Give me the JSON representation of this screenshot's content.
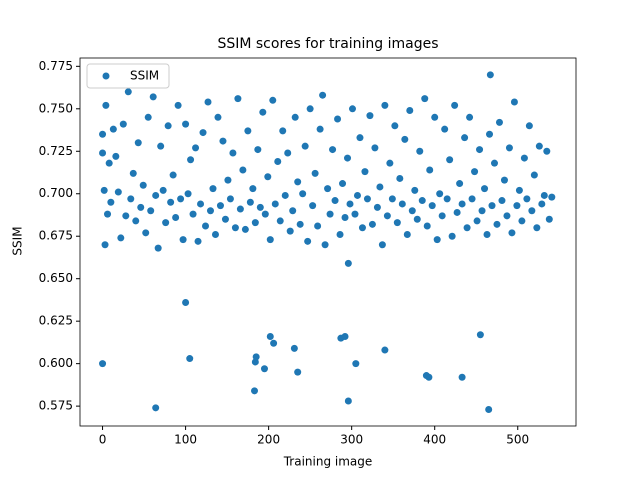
{
  "chart_data": {
    "type": "scatter",
    "title": "SSIM scores for training images",
    "x_label": "Training image",
    "y_label": "SSIM",
    "legend": "upper left",
    "xlim": [
      -27.15,
      570.15
    ],
    "ylim": [
      0.5633,
      0.7799
    ],
    "xticks": [
      0,
      100,
      200,
      300,
      400,
      500
    ],
    "yticks": [
      0.575,
      {
        "value": 0.6,
        "label": "0.600"
      },
      0.625,
      {
        "value": 0.65,
        "label": "0.650"
      },
      0.675,
      {
        "value": 0.7,
        "label": "0.700"
      },
      0.725,
      {
        "value": 0.75,
        "label": "0.750"
      },
      0.775
    ],
    "series": [
      {
        "name": "SSIM",
        "color": "#1f77b4",
        "x": [
          0,
          2,
          4,
          6,
          8,
          10,
          13,
          16,
          19,
          22,
          25,
          28,
          31,
          34,
          37,
          40,
          43,
          46,
          49,
          52,
          55,
          58,
          61,
          64,
          67,
          70,
          73,
          76,
          79,
          82,
          85,
          88,
          91,
          94,
          97,
          100,
          103,
          106,
          109,
          112,
          115,
          118,
          121,
          124,
          127,
          130,
          133,
          136,
          139,
          142,
          145,
          148,
          151,
          154,
          157,
          160,
          163,
          166,
          169,
          172,
          175,
          178,
          181,
          184,
          187,
          190,
          193,
          196,
          199,
          202,
          205,
          208,
          211,
          214,
          217,
          220,
          223,
          226,
          229,
          232,
          235,
          238,
          241,
          244,
          247,
          250,
          253,
          256,
          259,
          262,
          265,
          268,
          271,
          274,
          277,
          280,
          283,
          286,
          289,
          292,
          295,
          298,
          301,
          304,
          307,
          310,
          313,
          316,
          319,
          322,
          325,
          328,
          331,
          334,
          337,
          340,
          343,
          346,
          349,
          352,
          355,
          358,
          361,
          364,
          367,
          370,
          373,
          376,
          379,
          382,
          385,
          388,
          391,
          394,
          397,
          400,
          403,
          406,
          409,
          412,
          415,
          418,
          421,
          424,
          427,
          430,
          433,
          436,
          439,
          442,
          445,
          448,
          451,
          454,
          457,
          460,
          463,
          466,
          469,
          472,
          475,
          478,
          481,
          484,
          487,
          490,
          493,
          496,
          499,
          502,
          505,
          508,
          511,
          514,
          517,
          520,
          523,
          526,
          529,
          532,
          535,
          538,
          541,
          0,
          64,
          100,
          105,
          183,
          184,
          185,
          202,
          206,
          195,
          231,
          235,
          287,
          292,
          296,
          296,
          305,
          340,
          390,
          393,
          433,
          455,
          465,
          467,
          0,
          3
        ],
        "y": [
          0.735,
          0.702,
          0.752,
          0.688,
          0.718,
          0.695,
          0.738,
          0.722,
          0.701,
          0.674,
          0.741,
          0.687,
          0.76,
          0.697,
          0.712,
          0.684,
          0.73,
          0.692,
          0.705,
          0.677,
          0.745,
          0.69,
          0.757,
          0.699,
          0.668,
          0.728,
          0.702,
          0.683,
          0.74,
          0.695,
          0.711,
          0.686,
          0.752,
          0.697,
          0.673,
          0.741,
          0.7,
          0.72,
          0.688,
          0.727,
          0.672,
          0.694,
          0.736,
          0.681,
          0.754,
          0.69,
          0.703,
          0.676,
          0.745,
          0.693,
          0.731,
          0.685,
          0.708,
          0.697,
          0.724,
          0.68,
          0.756,
          0.691,
          0.714,
          0.679,
          0.737,
          0.695,
          0.703,
          0.683,
          0.726,
          0.692,
          0.748,
          0.688,
          0.71,
          0.673,
          0.755,
          0.694,
          0.719,
          0.684,
          0.737,
          0.699,
          0.724,
          0.678,
          0.69,
          0.745,
          0.707,
          0.682,
          0.7,
          0.728,
          0.672,
          0.75,
          0.693,
          0.712,
          0.681,
          0.738,
          0.758,
          0.67,
          0.703,
          0.688,
          0.726,
          0.696,
          0.744,
          0.676,
          0.706,
          0.686,
          0.721,
          0.694,
          0.75,
          0.688,
          0.699,
          0.733,
          0.68,
          0.713,
          0.697,
          0.746,
          0.682,
          0.727,
          0.692,
          0.704,
          0.67,
          0.752,
          0.687,
          0.718,
          0.697,
          0.74,
          0.683,
          0.709,
          0.694,
          0.732,
          0.676,
          0.749,
          0.69,
          0.702,
          0.685,
          0.725,
          0.696,
          0.756,
          0.681,
          0.714,
          0.693,
          0.745,
          0.673,
          0.7,
          0.687,
          0.738,
          0.697,
          0.72,
          0.675,
          0.752,
          0.689,
          0.706,
          0.694,
          0.733,
          0.68,
          0.745,
          0.697,
          0.713,
          0.684,
          0.726,
          0.69,
          0.703,
          0.676,
          0.735,
          0.693,
          0.718,
          0.682,
          0.742,
          0.696,
          0.708,
          0.687,
          0.727,
          0.677,
          0.754,
          0.693,
          0.702,
          0.684,
          0.721,
          0.697,
          0.74,
          0.69,
          0.711,
          0.68,
          0.728,
          0.694,
          0.699,
          0.725,
          0.685,
          0.698,
          0.6,
          0.574,
          0.636,
          0.603,
          0.584,
          0.601,
          0.604,
          0.616,
          0.612,
          0.597,
          0.609,
          0.595,
          0.615,
          0.616,
          0.578,
          0.659,
          0.6,
          0.608,
          0.593,
          0.592,
          0.592,
          0.617,
          0.573,
          0.77,
          0.724,
          0.67
        ]
      }
    ]
  }
}
